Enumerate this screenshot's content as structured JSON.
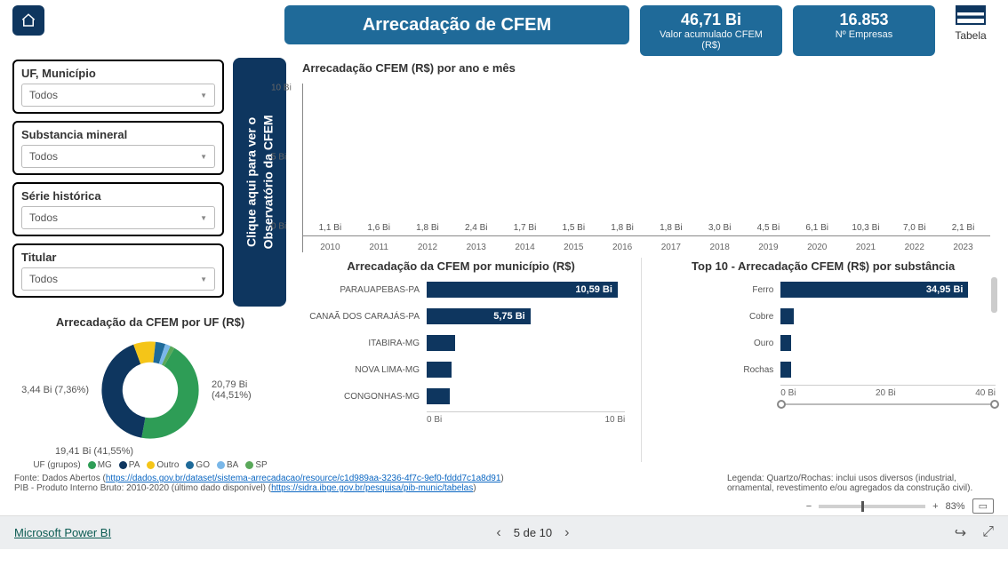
{
  "colors": {
    "brand": "#1f6a99",
    "brand_dark": "#0e365f",
    "donut": {
      "MG": "#2e9d56",
      "PA": "#0e365f",
      "Outro": "#f5c518",
      "GO": "#1f6a99",
      "BA": "#7ab7e8",
      "SP": "#5aa85a"
    }
  },
  "header": {
    "title": "Arrecadação de CFEM",
    "kpi1_value": "46,71 Bi",
    "kpi1_label": "Valor acumulado CFEM (R$)",
    "kpi2_value": "16.853",
    "kpi2_label": "Nº Empresas",
    "tabela_label": "Tabela"
  },
  "ribbon": "Clique aqui para ver o\nObservatório da CFEM",
  "filters": [
    {
      "title": "UF, Município",
      "value": "Todos"
    },
    {
      "title": "Substancia mineral",
      "value": "Todos"
    },
    {
      "title": "Série histórica",
      "value": "Todos"
    },
    {
      "title": "Titular",
      "value": "Todos"
    }
  ],
  "yearly": {
    "title": "Arrecadação CFEM (R$) por ano e mês",
    "ylim": [
      0,
      11
    ],
    "yticks": [
      0,
      5,
      10
    ],
    "ytick_labels": [
      "0 Bi",
      "5 Bi",
      "10 Bi"
    ],
    "years": [
      "2010",
      "2011",
      "2012",
      "2013",
      "2014",
      "2015",
      "2016",
      "2017",
      "2018",
      "2019",
      "2020",
      "2021",
      "2022",
      "2023"
    ],
    "values": [
      1.1,
      1.6,
      1.8,
      2.4,
      1.7,
      1.5,
      1.8,
      1.8,
      3.0,
      4.5,
      6.1,
      10.3,
      7.0,
      2.1
    ],
    "value_labels": [
      "1,1 Bi",
      "1,6 Bi",
      "1,8 Bi",
      "2,4 Bi",
      "1,7 Bi",
      "1,5 Bi",
      "1,8 Bi",
      "1,8 Bi",
      "3,0 Bi",
      "4,5 Bi",
      "6,1 Bi",
      "10,3 Bi",
      "7,0 Bi",
      "2,1 Bi"
    ],
    "bar_color": "#0e365f"
  },
  "by_mun": {
    "title": "Arrecadação da CFEM por município (R$)",
    "xmax": 11,
    "xticks": [
      "0 Bi",
      "10 Bi"
    ],
    "rows": [
      {
        "label": "PARAUAPEBAS-PA",
        "v": 10.59,
        "vl": "10,59 Bi"
      },
      {
        "label": "CANAÃ DOS CARAJÁS-PA",
        "v": 5.75,
        "vl": "5,75 Bi"
      },
      {
        "label": "ITABIRA-MG",
        "v": 1.6,
        "vl": ""
      },
      {
        "label": "NOVA LIMA-MG",
        "v": 1.4,
        "vl": ""
      },
      {
        "label": "CONGONHAS-MG",
        "v": 1.3,
        "vl": ""
      }
    ]
  },
  "by_subst": {
    "title": "Top 10 - Arrecadação CFEM (R$) por substância",
    "xmax": 40,
    "xticks": [
      "0 Bi",
      "20 Bi",
      "40 Bi"
    ],
    "rows": [
      {
        "label": "Ferro",
        "v": 34.95,
        "vl": "34,95 Bi"
      },
      {
        "label": "Cobre",
        "v": 2.4,
        "vl": ""
      },
      {
        "label": "Ouro",
        "v": 2.0,
        "vl": ""
      },
      {
        "label": "Rochas",
        "v": 1.5,
        "vl": ""
      }
    ]
  },
  "by_uf": {
    "title": "Arrecadação da CFEM por UF (R$)",
    "left_label": "3,44 Bi (7,36%)",
    "right_label_l1": "20,79 Bi",
    "right_label_l2": "(44,51%)",
    "bot_label": "19,41 Bi (41,55%)",
    "series": [
      {
        "name": "MG",
        "color": "#2e9d56",
        "pct": 44.51,
        "start": 300
      },
      {
        "name": "PA",
        "color": "#0e365f",
        "pct": 41.55
      },
      {
        "name": "Outro",
        "color": "#f5c518",
        "pct": 7.36
      },
      {
        "name": "GO",
        "color": "#1f6a99",
        "pct": 3.3
      },
      {
        "name": "BA",
        "color": "#7ab7e8",
        "pct": 1.8
      },
      {
        "name": "SP",
        "color": "#5aa85a",
        "pct": 1.48
      }
    ],
    "legend_prefix": "UF (grupos)"
  },
  "source": {
    "l1a": "Fonte: Dados Abertos (",
    "l1link": "https://dados.gov.br/dataset/sistema-arrecadacao/resource/c1d989aa-3236-4f7c-9ef0-fddd7c1a8d91",
    "l1b": ")",
    "l2a": "PIB - Produto Interno Bruto: 2010-2020 (último dado disponível) (",
    "l2link": "https://sidra.ibge.gov.br/pesquisa/pib-munic/tabelas",
    "l2b": ")",
    "legenda": "Legenda: Quartzo/Rochas: inclui usos diversos (industrial, ornamental, revestimento e/ou agregados da construção civil)."
  },
  "zoom": {
    "minus": "−",
    "plus": "+",
    "pct": "83%"
  },
  "footer": {
    "brand": "Microsoft Power BI",
    "page": "5 de 10"
  }
}
